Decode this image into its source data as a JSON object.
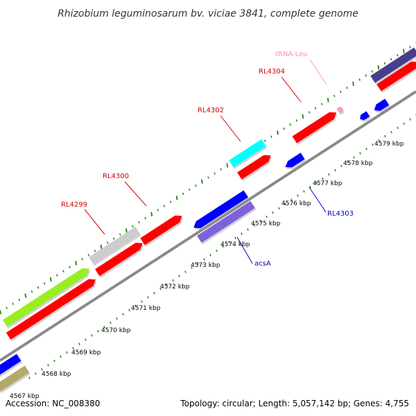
{
  "title": "Rhizobium leguminosarum bv. viciae 3841, complete genome",
  "footer": {
    "accession": "Accession: NC_008380",
    "topology": "Topology: circular; Length: 5,057,142 bp; Genes: 4,755"
  },
  "colors": {
    "forward_strand": "#ff0000",
    "reverse_strand": "#0000ff",
    "trna": "#ff99cc",
    "backbone": "#888888",
    "tick": "#2e8b22",
    "label_forward": "#d40000",
    "label_reverse": "#0000cc",
    "label_trna": "#ff88bb"
  },
  "kbp_labels": [
    "4567 kbp",
    "4568 kbp",
    "4569 kbp",
    "4570 kbp",
    "4571 kbp",
    "4572 kbp",
    "4573 kbp",
    "4574 kbp",
    "4575 kbp",
    "4576 kbp",
    "4577 kbp",
    "4578 kbp",
    "4579 kbp"
  ],
  "gene_labels": {
    "rl4299": "RL4299",
    "rl4300": "RL4300",
    "rl4302": "RL4302",
    "rl4304": "RL4304",
    "trna_leu": "tRNA-Leu",
    "rl4303": "RL4303",
    "acsa": "acsA"
  }
}
